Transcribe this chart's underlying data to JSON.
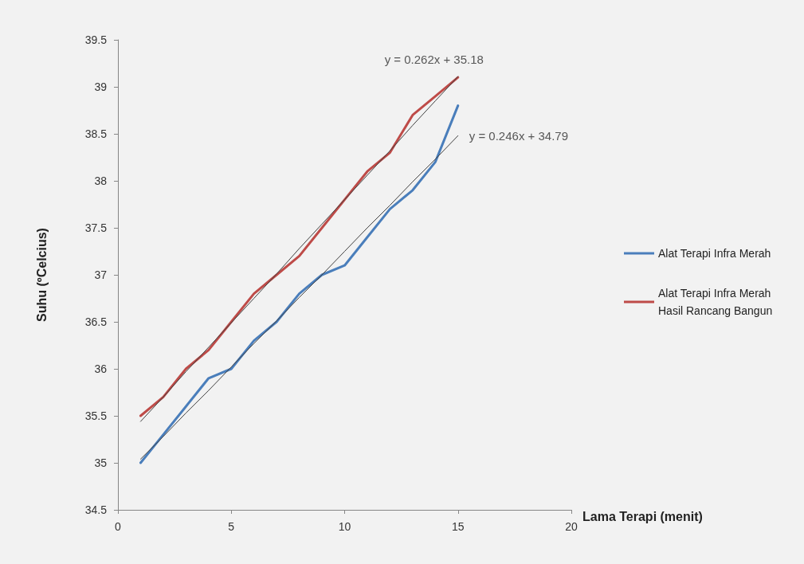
{
  "chart_data": {
    "type": "line",
    "xlabel": "Lama Terapi (menit)",
    "ylabel": "Suhu (ºCelcius)",
    "x": [
      1,
      2,
      3,
      4,
      5,
      6,
      7,
      8,
      9,
      10,
      11,
      12,
      13,
      14,
      15
    ],
    "series": [
      {
        "name": "Alat Terapi Infra Merah",
        "color": "#4a7ebb",
        "values": [
          35.0,
          35.3,
          35.6,
          35.9,
          36.0,
          36.3,
          36.5,
          36.8,
          37.0,
          37.1,
          37.4,
          37.7,
          37.9,
          38.2,
          38.8
        ]
      },
      {
        "name": "Alat Terapi Infra Merah Hasil Rancang Bangun",
        "color": "#be4b48",
        "values": [
          35.5,
          35.7,
          36.0,
          36.2,
          36.5,
          36.8,
          37.0,
          37.2,
          37.5,
          37.8,
          38.1,
          38.3,
          38.7,
          38.9,
          39.1
        ]
      },
      {
        "type": "line",
        "color": "#404040",
        "values": [
          35.04,
          35.28,
          35.53,
          35.77,
          36.02,
          36.27,
          36.51,
          36.76,
          37.0,
          37.25,
          37.5,
          37.74,
          37.99,
          38.23,
          38.48
        ]
      },
      {
        "type": "line",
        "color": "#404040",
        "values": [
          35.44,
          35.7,
          35.97,
          36.23,
          36.49,
          36.75,
          37.01,
          37.28,
          37.54,
          37.8,
          38.06,
          38.32,
          38.59,
          38.85,
          39.11
        ]
      }
    ],
    "annotations": [
      {
        "text": "y = 0.262x + 35.18",
        "x": 15,
        "y": 39.11
      },
      {
        "text": "y = 0.246x + 34.79",
        "x": 15,
        "y": 38.48
      }
    ],
    "xlim": [
      0,
      20
    ],
    "xticks": [
      0,
      5,
      10,
      15,
      20
    ],
    "ylim": [
      34.5,
      39.5
    ],
    "yticks": [
      34.5,
      35,
      35.5,
      36,
      36.5,
      37,
      37.5,
      38,
      38.5,
      39,
      39.5
    ],
    "grid": false,
    "legend": "right",
    "marker": "none",
    "line_style": "solid"
  }
}
